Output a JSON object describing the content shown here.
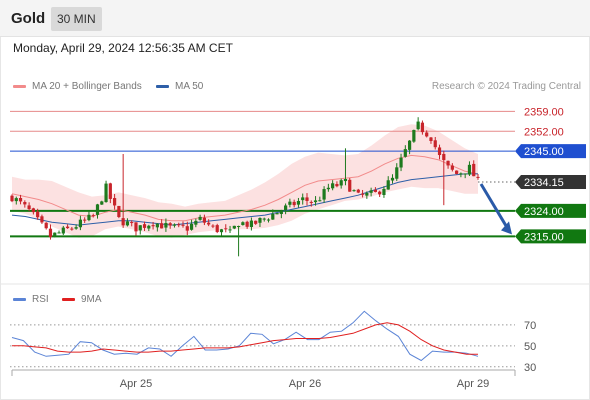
{
  "header": {
    "symbol": "Gold",
    "interval": "30 MIN",
    "datetime": "Monday, April 29, 2024 12:56:35 AM CET",
    "credit": "Research © 2024 Trading Central"
  },
  "legend": {
    "ma20_label": "MA 20 + Bollinger Bands",
    "ma20_color": "#f28b8b",
    "ma50_label": "MA 50",
    "ma50_color": "#2e5fa8",
    "rsi_label": "RSI",
    "rsi_color": "#5b84d6",
    "ma9_label": "9MA",
    "ma9_color": "#e02020"
  },
  "colors": {
    "up": "#1e7a1e",
    "down": "#c8242b",
    "band_fill": "#fbdcdc",
    "resistance": "#e68a8a",
    "pivot": "#1f4fd0",
    "support": "#117811",
    "current_tag": "#333333",
    "arrow": "#2a5aa8"
  },
  "chart_data": [
    {
      "type": "candlestick",
      "title": "",
      "x_tick_labels": [
        "Apr 25",
        "Apr 26",
        "Apr 29"
      ],
      "ylim": [
        2306,
        2363
      ],
      "levels": [
        {
          "label": "2359.00",
          "value": 2359.0,
          "kind": "resistance"
        },
        {
          "label": "2352.00",
          "value": 2352.0,
          "kind": "resistance"
        },
        {
          "label": "2345.00",
          "value": 2345.0,
          "kind": "pivot"
        },
        {
          "label": "2334.15",
          "value": 2334.15,
          "kind": "current"
        },
        {
          "label": "2324.00",
          "value": 2324.0,
          "kind": "support"
        },
        {
          "label": "2315.00",
          "value": 2315.0,
          "kind": "support"
        }
      ],
      "series": [
        {
          "name": "MA 20 + Bollinger Bands",
          "values": [
            2330.0,
            2329.0,
            2328.0,
            2326.5,
            2324.5,
            2322.5,
            2322.0,
            2323.5,
            2324.5,
            2323.5,
            2322.5,
            2321.0,
            2320.5,
            2320.5,
            2321.5,
            2322.0,
            2322.5,
            2323.5,
            2324.5,
            2326.0,
            2328.0,
            2330.5,
            2333.0,
            2334.5,
            2335.0,
            2335.5,
            2336.0,
            2338.0,
            2340.5,
            2342.5,
            2343.5,
            2343.0,
            2342.0,
            2340.0,
            2338.0,
            2337.0
          ]
        },
        {
          "name": "MA 50",
          "values": [
            2322.5,
            2322.0,
            2321.0,
            2320.0,
            2319.5,
            2319.0,
            2319.5,
            2320.0,
            2320.5,
            2320.5,
            2320.0,
            2319.5,
            2319.0,
            2319.5,
            2320.0,
            2320.5,
            2321.0,
            2321.5,
            2322.0,
            2322.5,
            2323.5,
            2324.5,
            2325.5,
            2326.5,
            2327.5,
            2328.5,
            2329.5,
            2331.0,
            2332.5,
            2334.0,
            2335.0,
            2335.5,
            2336.0,
            2336.5,
            2337.0,
            2337.0
          ]
        },
        {
          "name": "Projection",
          "from": 2334.15,
          "to": 2315.0
        }
      ]
    },
    {
      "type": "line",
      "title": "",
      "y_ticks": [
        70,
        50,
        30
      ],
      "ylim": [
        25,
        90
      ],
      "series": [
        {
          "name": "RSI",
          "values": [
            58,
            52,
            46,
            40,
            38,
            44,
            54,
            50,
            48,
            42,
            40,
            44,
            48,
            44,
            42,
            50,
            56,
            48,
            46,
            44,
            52,
            62,
            58,
            54,
            56,
            60,
            58,
            56,
            60,
            66,
            72,
            80,
            76,
            66,
            56,
            44,
            36,
            42,
            46,
            44,
            40,
            42
          ]
        },
        {
          "name": "9MA",
          "values": [
            50,
            50,
            49,
            48,
            45,
            44,
            44,
            45,
            47,
            46,
            45,
            44,
            44,
            45,
            45,
            46,
            47,
            48,
            48,
            48,
            49,
            51,
            53,
            55,
            56,
            57,
            57,
            57,
            58,
            60,
            62,
            66,
            70,
            72,
            70,
            64,
            56,
            50,
            46,
            44,
            42,
            42
          ]
        }
      ]
    }
  ]
}
